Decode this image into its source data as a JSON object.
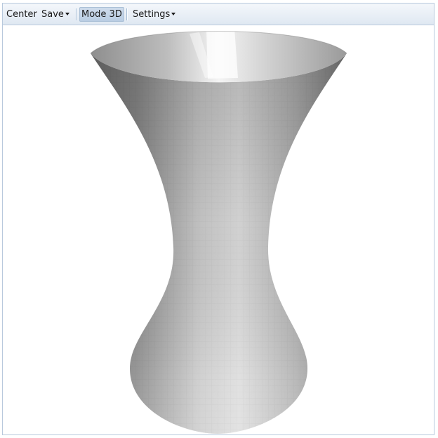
{
  "toolbar": {
    "center_label": "Center",
    "save_label": "Save",
    "mode_label": "Mode 3D",
    "settings_label": "Settings"
  },
  "viewport": {
    "object": "hyperboloid surface",
    "shading": "grayscale faceted"
  },
  "colors": {
    "toolbar_top": "#f4f7fb",
    "toolbar_bottom": "#dfe8f2",
    "border": "#b8c9dd",
    "active_button": "#c3d4e8"
  }
}
